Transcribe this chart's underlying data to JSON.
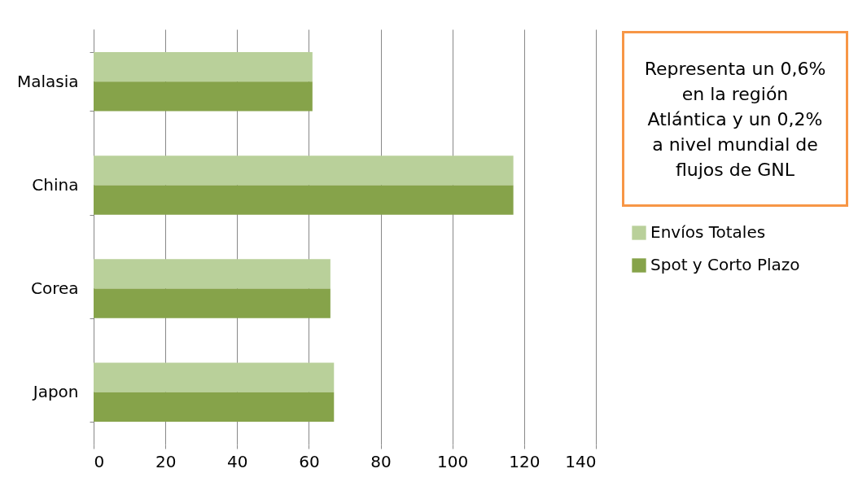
{
  "chart_data": {
    "type": "bar",
    "orientation": "horizontal",
    "categories": [
      "Malasia",
      "China",
      "Corea",
      "Japon"
    ],
    "series": [
      {
        "name": "Envíos Totales",
        "color": "#b9d09a",
        "values": [
          61,
          117,
          66,
          67
        ]
      },
      {
        "name": "Spot y Corto Plazo",
        "color": "#86a34a",
        "values": [
          61,
          117,
          66,
          67
        ]
      }
    ],
    "xlim": [
      0,
      140
    ],
    "xticks": [
      0,
      20,
      40,
      60,
      80,
      100,
      120,
      140
    ],
    "grid": "x",
    "legend": "right",
    "annotations": [
      "Representa un 0,6% en la región Atlántica y un 0,2% a nivel mundial de flujos de GNL"
    ]
  }
}
